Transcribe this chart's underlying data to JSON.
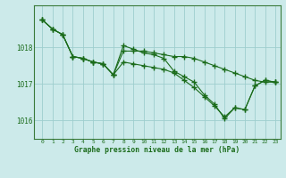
{
  "x": [
    0,
    1,
    2,
    3,
    4,
    5,
    6,
    7,
    8,
    9,
    10,
    11,
    12,
    13,
    14,
    15,
    16,
    17,
    18,
    19,
    20,
    21,
    22,
    23
  ],
  "line1": [
    1018.75,
    1018.5,
    1018.35,
    1017.75,
    1017.7,
    1017.6,
    1017.55,
    1017.25,
    1018.05,
    1017.95,
    1017.85,
    1017.8,
    1017.7,
    1017.35,
    1017.2,
    1017.05,
    1016.7,
    1016.45,
    1016.05,
    1016.35,
    1016.3,
    1016.95,
    1017.1,
    1017.05
  ],
  "line2": [
    1018.75,
    1018.5,
    1018.35,
    1017.75,
    1017.7,
    1017.6,
    1017.55,
    1017.25,
    1017.6,
    1017.55,
    1017.5,
    1017.45,
    1017.4,
    1017.3,
    1017.1,
    1016.9,
    1016.65,
    1016.4,
    1016.1,
    1016.35,
    1016.3,
    1016.95,
    1017.1,
    1017.05
  ],
  "line3": [
    1018.75,
    1018.5,
    1018.35,
    1017.75,
    1017.7,
    1017.6,
    1017.55,
    1017.25,
    1017.9,
    1017.9,
    1017.9,
    1017.85,
    1017.8,
    1017.75,
    1017.75,
    1017.7,
    1017.6,
    1017.5,
    1017.4,
    1017.3,
    1017.2,
    1017.1,
    1017.05,
    1017.05
  ],
  "ylim": [
    1015.5,
    1019.15
  ],
  "yticks": [
    1016,
    1017,
    1018
  ],
  "xtick_labels": [
    "0",
    "1",
    "2",
    "3",
    "4",
    "5",
    "6",
    "7",
    "8",
    "9",
    "10",
    "11",
    "12",
    "13",
    "14",
    "15",
    "16",
    "17",
    "18",
    "19",
    "20",
    "21",
    "22",
    "23"
  ],
  "xlabel": "Graphe pression niveau de la mer (hPa)",
  "line_color": "#1a6b1a",
  "bg_color": "#cceaea",
  "grid_color": "#9ecece",
  "marker": "+",
  "markersize": 4.0,
  "linewidth": 0.8
}
